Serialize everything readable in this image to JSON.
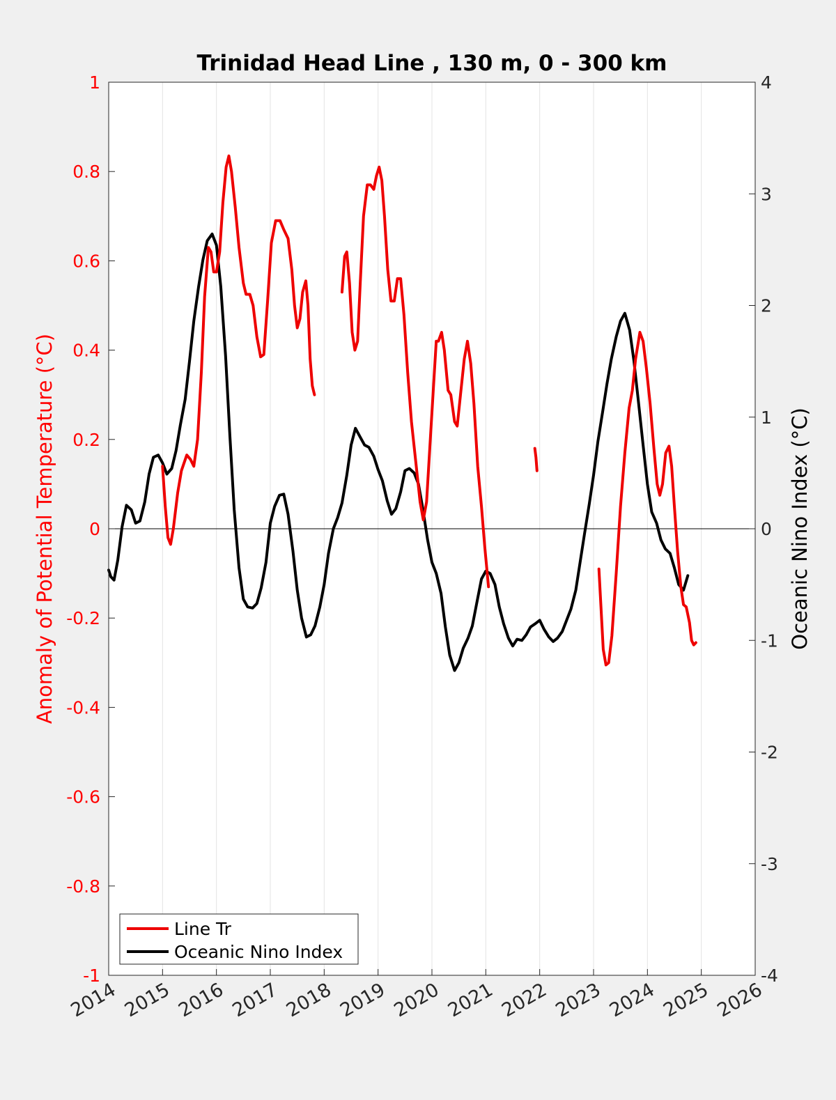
{
  "chart_data": {
    "type": "line",
    "title": "Trinidad Head Line , 130 m, 0 - 300 km",
    "ylabel_left": "Anomaly of Potential Temperature (°C)",
    "ylabel_right": "Oceanic Nino Index (°C)",
    "xlim": [
      2014,
      2026
    ],
    "ylim_left": [
      -1,
      1
    ],
    "ylim_right": [
      -4,
      4
    ],
    "x_ticks": [
      "2014",
      "2015",
      "2016",
      "2017",
      "2018",
      "2019",
      "2020",
      "2021",
      "2022",
      "2023",
      "2024",
      "2025",
      "2026"
    ],
    "y_ticks_left": [
      "1",
      "0.8",
      "0.6",
      "0.4",
      "0.2",
      "0",
      "-0.2",
      "-0.4",
      "-0.6",
      "-0.8",
      "-1"
    ],
    "y_ticks_right": [
      "4",
      "3",
      "2",
      "1",
      "0",
      "-1",
      "-2",
      "-3",
      "-4"
    ],
    "grid": "vertical",
    "legend_position": "bottom-left",
    "colors": {
      "left_axis": "#ff0000",
      "series_line_tr": "#ee0000",
      "series_oni": "#000000",
      "background": "#f0f0f0",
      "plot_area": "#ffffff"
    },
    "series": [
      {
        "name": "Line Tr",
        "axis": "left",
        "segments": [
          [
            [
              2015.0,
              0.14
            ],
            [
              2015.05,
              0.05
            ],
            [
              2015.1,
              -0.02
            ],
            [
              2015.15,
              -0.035
            ],
            [
              2015.2,
              0.0
            ],
            [
              2015.28,
              0.08
            ],
            [
              2015.35,
              0.13
            ],
            [
              2015.45,
              0.165
            ],
            [
              2015.52,
              0.155
            ],
            [
              2015.58,
              0.14
            ],
            [
              2015.65,
              0.2
            ],
            [
              2015.72,
              0.35
            ],
            [
              2015.78,
              0.52
            ],
            [
              2015.85,
              0.63
            ],
            [
              2015.9,
              0.62
            ],
            [
              2015.95,
              0.575
            ],
            [
              2016.0,
              0.575
            ],
            [
              2016.06,
              0.62
            ],
            [
              2016.12,
              0.73
            ],
            [
              2016.18,
              0.81
            ],
            [
              2016.23,
              0.835
            ],
            [
              2016.28,
              0.8
            ],
            [
              2016.35,
              0.72
            ],
            [
              2016.42,
              0.63
            ],
            [
              2016.5,
              0.55
            ],
            [
              2016.55,
              0.525
            ],
            [
              2016.62,
              0.525
            ],
            [
              2016.68,
              0.5
            ],
            [
              2016.75,
              0.43
            ],
            [
              2016.82,
              0.385
            ],
            [
              2016.88,
              0.39
            ],
            [
              2016.95,
              0.51
            ],
            [
              2017.02,
              0.64
            ],
            [
              2017.1,
              0.69
            ],
            [
              2017.18,
              0.69
            ],
            [
              2017.25,
              0.67
            ],
            [
              2017.33,
              0.65
            ],
            [
              2017.4,
              0.58
            ],
            [
              2017.45,
              0.5
            ],
            [
              2017.5,
              0.45
            ],
            [
              2017.55,
              0.47
            ],
            [
              2017.6,
              0.53
            ],
            [
              2017.66,
              0.555
            ],
            [
              2017.7,
              0.5
            ],
            [
              2017.74,
              0.38
            ],
            [
              2017.78,
              0.32
            ],
            [
              2017.82,
              0.3
            ]
          ],
          [
            [
              2018.33,
              0.53
            ],
            [
              2018.38,
              0.61
            ],
            [
              2018.42,
              0.62
            ],
            [
              2018.47,
              0.55
            ],
            [
              2018.52,
              0.44
            ],
            [
              2018.57,
              0.4
            ],
            [
              2018.62,
              0.42
            ],
            [
              2018.67,
              0.55
            ],
            [
              2018.73,
              0.7
            ],
            [
              2018.8,
              0.77
            ],
            [
              2018.86,
              0.77
            ],
            [
              2018.92,
              0.76
            ],
            [
              2018.97,
              0.79
            ],
            [
              2019.02,
              0.81
            ],
            [
              2019.07,
              0.78
            ],
            [
              2019.12,
              0.7
            ],
            [
              2019.18,
              0.58
            ],
            [
              2019.24,
              0.51
            ],
            [
              2019.3,
              0.51
            ],
            [
              2019.36,
              0.56
            ],
            [
              2019.42,
              0.56
            ],
            [
              2019.48,
              0.48
            ],
            [
              2019.55,
              0.35
            ],
            [
              2019.62,
              0.24
            ],
            [
              2019.7,
              0.15
            ],
            [
              2019.78,
              0.06
            ],
            [
              2019.84,
              0.02
            ],
            [
              2019.9,
              0.06
            ],
            [
              2019.96,
              0.18
            ],
            [
              2020.03,
              0.32
            ],
            [
              2020.08,
              0.42
            ],
            [
              2020.12,
              0.42
            ],
            [
              2020.18,
              0.44
            ],
            [
              2020.23,
              0.4
            ],
            [
              2020.3,
              0.31
            ],
            [
              2020.35,
              0.3
            ],
            [
              2020.42,
              0.24
            ],
            [
              2020.47,
              0.23
            ],
            [
              2020.53,
              0.3
            ],
            [
              2020.6,
              0.38
            ],
            [
              2020.66,
              0.42
            ],
            [
              2020.72,
              0.37
            ],
            [
              2020.78,
              0.28
            ],
            [
              2020.85,
              0.14
            ],
            [
              2020.92,
              0.05
            ],
            [
              2020.98,
              -0.04
            ],
            [
              2021.05,
              -0.13
            ]
          ],
          [
            [
              2021.91,
              0.18
            ],
            [
              2021.93,
              0.16
            ],
            [
              2021.95,
              0.13
            ]
          ],
          [
            [
              2023.1,
              -0.09
            ],
            [
              2023.14,
              -0.18
            ],
            [
              2023.18,
              -0.27
            ],
            [
              2023.23,
              -0.305
            ],
            [
              2023.28,
              -0.3
            ],
            [
              2023.34,
              -0.24
            ],
            [
              2023.42,
              -0.1
            ],
            [
              2023.5,
              0.05
            ],
            [
              2023.58,
              0.17
            ],
            [
              2023.66,
              0.27
            ],
            [
              2023.72,
              0.31
            ],
            [
              2023.78,
              0.38
            ],
            [
              2023.86,
              0.44
            ],
            [
              2023.92,
              0.42
            ],
            [
              2023.98,
              0.36
            ],
            [
              2024.05,
              0.28
            ],
            [
              2024.12,
              0.18
            ],
            [
              2024.18,
              0.1
            ],
            [
              2024.23,
              0.075
            ],
            [
              2024.28,
              0.1
            ],
            [
              2024.34,
              0.17
            ],
            [
              2024.4,
              0.185
            ],
            [
              2024.45,
              0.14
            ],
            [
              2024.5,
              0.05
            ],
            [
              2024.56,
              -0.05
            ],
            [
              2024.62,
              -0.13
            ],
            [
              2024.67,
              -0.17
            ],
            [
              2024.72,
              -0.175
            ],
            [
              2024.78,
              -0.21
            ],
            [
              2024.82,
              -0.25
            ],
            [
              2024.86,
              -0.26
            ],
            [
              2024.9,
              -0.255
            ]
          ]
        ]
      },
      {
        "name": "Oceanic Nino Index",
        "axis": "right",
        "segments": [
          [
            [
              2014.0,
              -0.37
            ],
            [
              2014.04,
              -0.43
            ],
            [
              2014.1,
              -0.46
            ],
            [
              2014.17,
              -0.28
            ],
            [
              2014.25,
              0.02
            ],
            [
              2014.33,
              0.21
            ],
            [
              2014.42,
              0.17
            ],
            [
              2014.5,
              0.05
            ],
            [
              2014.58,
              0.07
            ],
            [
              2014.67,
              0.24
            ],
            [
              2014.75,
              0.49
            ],
            [
              2014.83,
              0.64
            ],
            [
              2014.92,
              0.66
            ],
            [
              2015.0,
              0.59
            ],
            [
              2015.08,
              0.49
            ],
            [
              2015.17,
              0.54
            ],
            [
              2015.25,
              0.7
            ],
            [
              2015.33,
              0.93
            ],
            [
              2015.42,
              1.16
            ],
            [
              2015.5,
              1.5
            ],
            [
              2015.58,
              1.86
            ],
            [
              2015.67,
              2.17
            ],
            [
              2015.75,
              2.41
            ],
            [
              2015.83,
              2.58
            ],
            [
              2015.92,
              2.64
            ],
            [
              2016.0,
              2.54
            ],
            [
              2016.08,
              2.17
            ],
            [
              2016.17,
              1.55
            ],
            [
              2016.25,
              0.83
            ],
            [
              2016.33,
              0.17
            ],
            [
              2016.42,
              -0.35
            ],
            [
              2016.5,
              -0.63
            ],
            [
              2016.58,
              -0.7
            ],
            [
              2016.67,
              -0.71
            ],
            [
              2016.75,
              -0.67
            ],
            [
              2016.83,
              -0.53
            ],
            [
              2016.92,
              -0.3
            ],
            [
              2017.0,
              0.05
            ],
            [
              2017.08,
              0.2
            ],
            [
              2017.17,
              0.3
            ],
            [
              2017.25,
              0.31
            ],
            [
              2017.33,
              0.13
            ],
            [
              2017.42,
              -0.2
            ],
            [
              2017.5,
              -0.55
            ],
            [
              2017.58,
              -0.8
            ],
            [
              2017.67,
              -0.97
            ],
            [
              2017.75,
              -0.95
            ],
            [
              2017.83,
              -0.87
            ],
            [
              2017.92,
              -0.7
            ],
            [
              2018.0,
              -0.5
            ],
            [
              2018.08,
              -0.22
            ],
            [
              2018.17,
              0.0
            ],
            [
              2018.25,
              0.1
            ],
            [
              2018.33,
              0.23
            ],
            [
              2018.42,
              0.48
            ],
            [
              2018.5,
              0.75
            ],
            [
              2018.58,
              0.9
            ],
            [
              2018.67,
              0.82
            ],
            [
              2018.75,
              0.75
            ],
            [
              2018.83,
              0.73
            ],
            [
              2018.92,
              0.65
            ],
            [
              2019.0,
              0.53
            ],
            [
              2019.08,
              0.43
            ],
            [
              2019.17,
              0.25
            ],
            [
              2019.25,
              0.13
            ],
            [
              2019.33,
              0.18
            ],
            [
              2019.42,
              0.33
            ],
            [
              2019.5,
              0.52
            ],
            [
              2019.58,
              0.54
            ],
            [
              2019.67,
              0.5
            ],
            [
              2019.75,
              0.4
            ],
            [
              2019.83,
              0.18
            ],
            [
              2019.92,
              -0.1
            ],
            [
              2020.0,
              -0.3
            ],
            [
              2020.08,
              -0.4
            ],
            [
              2020.17,
              -0.58
            ],
            [
              2020.25,
              -0.88
            ],
            [
              2020.33,
              -1.13
            ],
            [
              2020.42,
              -1.27
            ],
            [
              2020.5,
              -1.2
            ],
            [
              2020.58,
              -1.07
            ],
            [
              2020.67,
              -0.98
            ],
            [
              2020.75,
              -0.87
            ],
            [
              2020.83,
              -0.67
            ],
            [
              2020.92,
              -0.45
            ],
            [
              2021.0,
              -0.38
            ],
            [
              2021.08,
              -0.4
            ],
            [
              2021.17,
              -0.5
            ],
            [
              2021.25,
              -0.7
            ],
            [
              2021.33,
              -0.85
            ],
            [
              2021.42,
              -0.98
            ],
            [
              2021.5,
              -1.05
            ],
            [
              2021.58,
              -0.99
            ],
            [
              2021.67,
              -1.0
            ],
            [
              2021.75,
              -0.95
            ],
            [
              2021.83,
              -0.88
            ],
            [
              2021.92,
              -0.85
            ],
            [
              2022.0,
              -0.82
            ],
            [
              2022.08,
              -0.9
            ],
            [
              2022.17,
              -0.97
            ],
            [
              2022.25,
              -1.01
            ],
            [
              2022.33,
              -0.98
            ],
            [
              2022.42,
              -0.92
            ],
            [
              2022.5,
              -0.82
            ],
            [
              2022.58,
              -0.72
            ],
            [
              2022.67,
              -0.55
            ],
            [
              2022.75,
              -0.3
            ],
            [
              2022.83,
              -0.05
            ],
            [
              2022.92,
              0.22
            ],
            [
              2023.0,
              0.48
            ],
            [
              2023.08,
              0.78
            ],
            [
              2023.17,
              1.05
            ],
            [
              2023.25,
              1.3
            ],
            [
              2023.33,
              1.52
            ],
            [
              2023.42,
              1.72
            ],
            [
              2023.5,
              1.86
            ],
            [
              2023.58,
              1.93
            ],
            [
              2023.67,
              1.78
            ],
            [
              2023.75,
              1.5
            ],
            [
              2023.83,
              1.15
            ],
            [
              2023.92,
              0.75
            ],
            [
              2024.0,
              0.4
            ],
            [
              2024.08,
              0.15
            ],
            [
              2024.17,
              0.05
            ],
            [
              2024.25,
              -0.1
            ],
            [
              2024.33,
              -0.18
            ],
            [
              2024.42,
              -0.22
            ],
            [
              2024.5,
              -0.35
            ],
            [
              2024.58,
              -0.5
            ],
            [
              2024.67,
              -0.55
            ],
            [
              2024.75,
              -0.42
            ]
          ]
        ]
      }
    ]
  }
}
